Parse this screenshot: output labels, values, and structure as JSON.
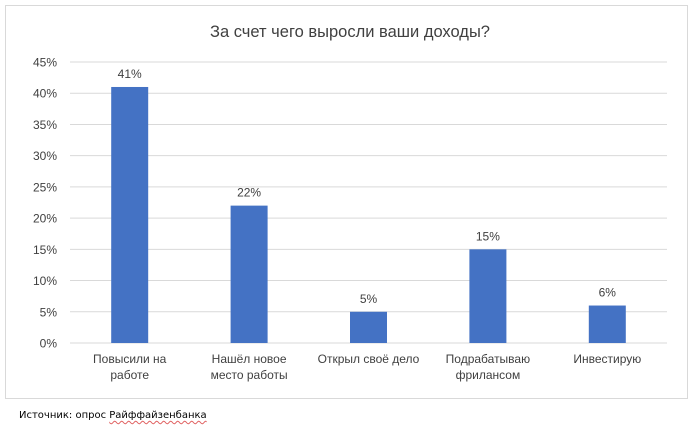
{
  "chart_data": {
    "type": "bar",
    "title": "За счет чего выросли ваши доходы?",
    "categories": [
      [
        "Повысили на",
        "работе"
      ],
      [
        "Нашёл новое",
        "место работы"
      ],
      [
        "Открыл своё дело"
      ],
      [
        "Подрабатываю",
        "фрилансом"
      ],
      [
        "Инвестирую"
      ]
    ],
    "values": [
      41,
      22,
      5,
      15,
      6
    ],
    "value_labels": [
      "41%",
      "22%",
      "5%",
      "15%",
      "6%"
    ],
    "ylim": [
      0,
      45
    ],
    "yticks": [
      0,
      5,
      10,
      15,
      20,
      25,
      30,
      35,
      40,
      45
    ],
    "ytick_labels": [
      "0%",
      "5%",
      "10%",
      "15%",
      "20%",
      "25%",
      "30%",
      "35%",
      "40%",
      "45%"
    ],
    "grid": true,
    "legend": "none",
    "bar_color": "#4472c4",
    "grid_color": "#d9d9d9",
    "text_color": "#404040"
  },
  "source": {
    "prefix": "Источник: опрос ",
    "name": "Райффайзенбанка"
  }
}
